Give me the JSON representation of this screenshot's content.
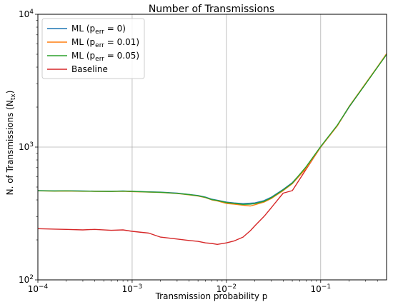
{
  "chart_data": {
    "type": "line",
    "title": "Number of Transmissions",
    "xlabel": "Transmission probability p",
    "ylabel_main": "N. of Transmissions (N",
    "ylabel_sub": "tx",
    "ylabel_close": ")",
    "xscale": "log",
    "yscale": "log",
    "xlim": [
      0.0001,
      0.5
    ],
    "ylim": [
      100,
      10000
    ],
    "grid": true,
    "legend_position": "top-left",
    "x_ticks": [
      {
        "value": 0.0001,
        "base": "10",
        "exp": "−4"
      },
      {
        "value": 0.001,
        "base": "10",
        "exp": "−3"
      },
      {
        "value": 0.01,
        "base": "10",
        "exp": "−2"
      },
      {
        "value": 0.1,
        "base": "10",
        "exp": "−1"
      }
    ],
    "y_ticks": [
      {
        "value": 100,
        "base": "10",
        "exp": "2"
      },
      {
        "value": 1000,
        "base": "10",
        "exp": "3"
      },
      {
        "value": 10000,
        "base": "10",
        "exp": "4"
      }
    ],
    "x": [
      0.0001,
      0.00015,
      0.0002,
      0.0003,
      0.0004,
      0.0006,
      0.0008,
      0.001,
      0.0015,
      0.002,
      0.003,
      0.004,
      0.005,
      0.006,
      0.007,
      0.008,
      0.01,
      0.012,
      0.015,
      0.018,
      0.02,
      0.025,
      0.03,
      0.04,
      0.05,
      0.07,
      0.1,
      0.15,
      0.2,
      0.3,
      0.4,
      0.5
    ],
    "series": [
      {
        "name_main": "ML (p",
        "name_sub": "err",
        "name_rest": " = 0)",
        "color": "#1f77b4",
        "values": [
          470,
          468,
          469,
          467,
          466,
          465,
          467,
          465,
          460,
          458,
          450,
          440,
          432,
          420,
          405,
          398,
          385,
          380,
          375,
          378,
          380,
          395,
          420,
          480,
          540,
          700,
          1000,
          1450,
          2000,
          3000,
          4000,
          5000
        ]
      },
      {
        "name_main": "ML (p",
        "name_sub": "err",
        "name_rest": " = 0.01)",
        "color": "#ff7f0e",
        "values": [
          468,
          466,
          467,
          465,
          464,
          463,
          465,
          462,
          458,
          455,
          447,
          437,
          428,
          416,
          400,
          393,
          376,
          372,
          365,
          360,
          368,
          385,
          410,
          470,
          530,
          690,
          1000,
          1440,
          2020,
          3020,
          4020,
          5050
        ]
      },
      {
        "name_main": "ML (p",
        "name_sub": "err",
        "name_rest": " = 0.05)",
        "color": "#2ca02c",
        "values": [
          469,
          467,
          468,
          466,
          465,
          464,
          466,
          464,
          459,
          457,
          448,
          439,
          430,
          418,
          402,
          396,
          382,
          377,
          370,
          372,
          375,
          390,
          415,
          475,
          535,
          710,
          1010,
          1460,
          2010,
          2990,
          3990,
          4980
        ]
      },
      {
        "name": "Baseline",
        "color": "#d62728",
        "values": [
          243,
          241,
          240,
          238,
          240,
          236,
          238,
          232,
          225,
          210,
          203,
          198,
          195,
          190,
          188,
          185,
          190,
          196,
          210,
          235,
          255,
          300,
          350,
          450,
          470,
          680,
          1000,
          1450,
          2000,
          3000,
          4000,
          5000
        ]
      }
    ]
  }
}
